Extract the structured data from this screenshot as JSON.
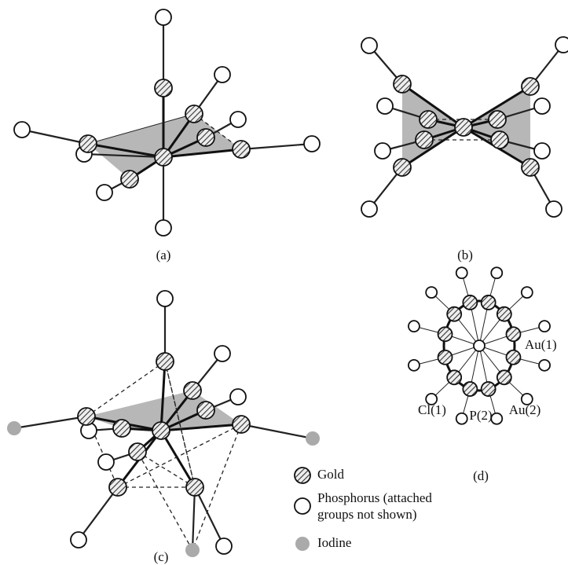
{
  "panels": [
    {
      "label": "(a)"
    },
    {
      "label": "(b)"
    },
    {
      "label": "(c)"
    },
    {
      "label": "(d)"
    }
  ],
  "annotations": [
    "Au(1)",
    "Cl(1)",
    "P(2)",
    "Au(2)"
  ],
  "legend": [
    {
      "label": "Gold"
    },
    {
      "label_lines": [
        "Phosphorus (attached",
        "groups not shown)"
      ]
    },
    {
      "label": "Iodine"
    }
  ]
}
